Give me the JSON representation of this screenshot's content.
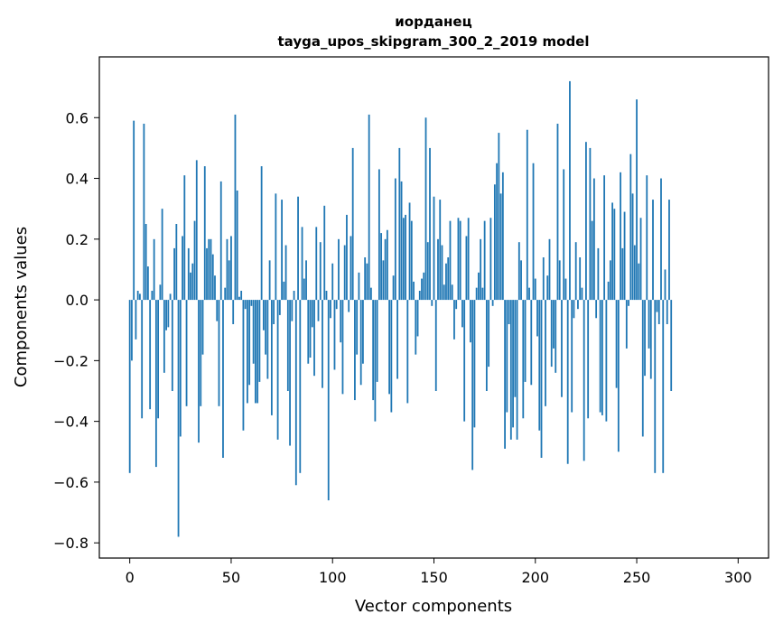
{
  "chart_data": {
    "type": "bar",
    "title": "иорданец",
    "subtitle": "tayga_upos_skipgram_300_2_2019 model",
    "xlabel": "Vector components",
    "ylabel": "Components values",
    "xlim": [
      -15,
      315
    ],
    "ylim": [
      -0.85,
      0.8
    ],
    "xticks": [
      0,
      50,
      100,
      150,
      200,
      250,
      300
    ],
    "xtick_labels": [
      "0",
      "50",
      "100",
      "150",
      "200",
      "250",
      "300"
    ],
    "yticks": [
      -0.8,
      -0.6,
      -0.4,
      -0.2,
      0.0,
      0.2,
      0.4,
      0.6
    ],
    "ytick_labels": [
      "−0.8",
      "−0.6",
      "−0.4",
      "−0.2",
      "0.0",
      "0.2",
      "0.4",
      "0.6"
    ],
    "grid": false,
    "bar_color": "#1f77b4",
    "values": [
      -0.57,
      -0.2,
      0.59,
      -0.13,
      0.03,
      0.02,
      -0.39,
      0.58,
      0.25,
      0.11,
      -0.36,
      0.03,
      0.2,
      -0.55,
      -0.39,
      0.05,
      0.3,
      -0.24,
      -0.1,
      -0.09,
      0.02,
      -0.3,
      0.17,
      0.25,
      -0.78,
      -0.45,
      0.21,
      0.41,
      -0.35,
      0.17,
      0.09,
      0.12,
      0.26,
      0.46,
      -0.47,
      -0.35,
      -0.18,
      0.44,
      0.17,
      0.2,
      0.2,
      0.15,
      0.08,
      -0.07,
      -0.35,
      0.39,
      -0.52,
      0.04,
      0.2,
      0.13,
      0.21,
      -0.08,
      0.61,
      0.36,
      0.01,
      0.03,
      -0.43,
      -0.03,
      -0.34,
      -0.28,
      -0.02,
      -0.21,
      -0.34,
      -0.34,
      -0.27,
      0.44,
      -0.1,
      -0.18,
      -0.26,
      0.13,
      -0.38,
      -0.08,
      0.35,
      -0.46,
      -0.05,
      0.33,
      0.06,
      0.18,
      -0.3,
      -0.48,
      -0.07,
      0.03,
      -0.61,
      0.34,
      -0.57,
      0.24,
      0.07,
      0.13,
      -0.21,
      -0.19,
      -0.09,
      -0.25,
      0.24,
      -0.07,
      0.19,
      -0.29,
      0.31,
      0.03,
      -0.66,
      -0.06,
      0.12,
      -0.23,
      -0.03,
      0.2,
      -0.14,
      -0.31,
      0.18,
      0.28,
      -0.04,
      0.21,
      0.5,
      -0.33,
      -0.18,
      0.09,
      -0.28,
      -0.21,
      0.14,
      0.12,
      0.61,
      0.04,
      -0.33,
      -0.4,
      -0.27,
      0.43,
      0.22,
      0.13,
      0.2,
      0.23,
      -0.31,
      -0.37,
      0.08,
      0.4,
      -0.26,
      0.5,
      0.39,
      0.27,
      0.28,
      -0.34,
      0.32,
      0.26,
      0.06,
      -0.18,
      -0.12,
      0.03,
      0.07,
      0.09,
      0.6,
      0.19,
      0.5,
      -0.02,
      0.34,
      -0.3,
      0.2,
      0.33,
      0.18,
      0.05,
      0.12,
      0.14,
      0.26,
      0.05,
      -0.13,
      -0.03,
      0.27,
      0.26,
      -0.09,
      -0.4,
      0.21,
      0.27,
      -0.14,
      -0.56,
      -0.42,
      0.04,
      0.09,
      0.2,
      0.04,
      0.26,
      -0.3,
      -0.22,
      0.27,
      -0.02,
      0.38,
      0.45,
      0.55,
      0.35,
      0.42,
      -0.49,
      -0.37,
      -0.08,
      -0.46,
      -0.42,
      -0.32,
      -0.46,
      0.19,
      0.13,
      -0.39,
      -0.27,
      0.56,
      0.04,
      -0.28,
      0.45,
      0.07,
      -0.12,
      -0.43,
      -0.52,
      0.14,
      -0.35,
      0.08,
      0.2,
      -0.22,
      -0.16,
      -0.24,
      0.58,
      0.13,
      -0.32,
      0.43,
      0.07,
      -0.54,
      0.72,
      -0.37,
      -0.06,
      0.19,
      -0.03,
      0.14,
      0.04,
      -0.53,
      0.52,
      -0.39,
      0.5,
      0.26,
      0.4,
      -0.06,
      0.17,
      -0.37,
      -0.38,
      0.41,
      -0.4,
      0.06,
      0.13,
      0.32,
      0.3,
      -0.29,
      -0.5,
      0.42,
      0.17,
      0.29,
      -0.16,
      -0.02,
      0.48,
      0.35,
      0.18,
      0.66,
      0.12,
      0.27,
      -0.45,
      -0.25,
      0.41,
      -0.16,
      -0.26,
      0.33,
      -0.57,
      -0.04,
      -0.08,
      0.4,
      -0.57,
      0.1,
      -0.08,
      0.33,
      -0.3
    ]
  }
}
